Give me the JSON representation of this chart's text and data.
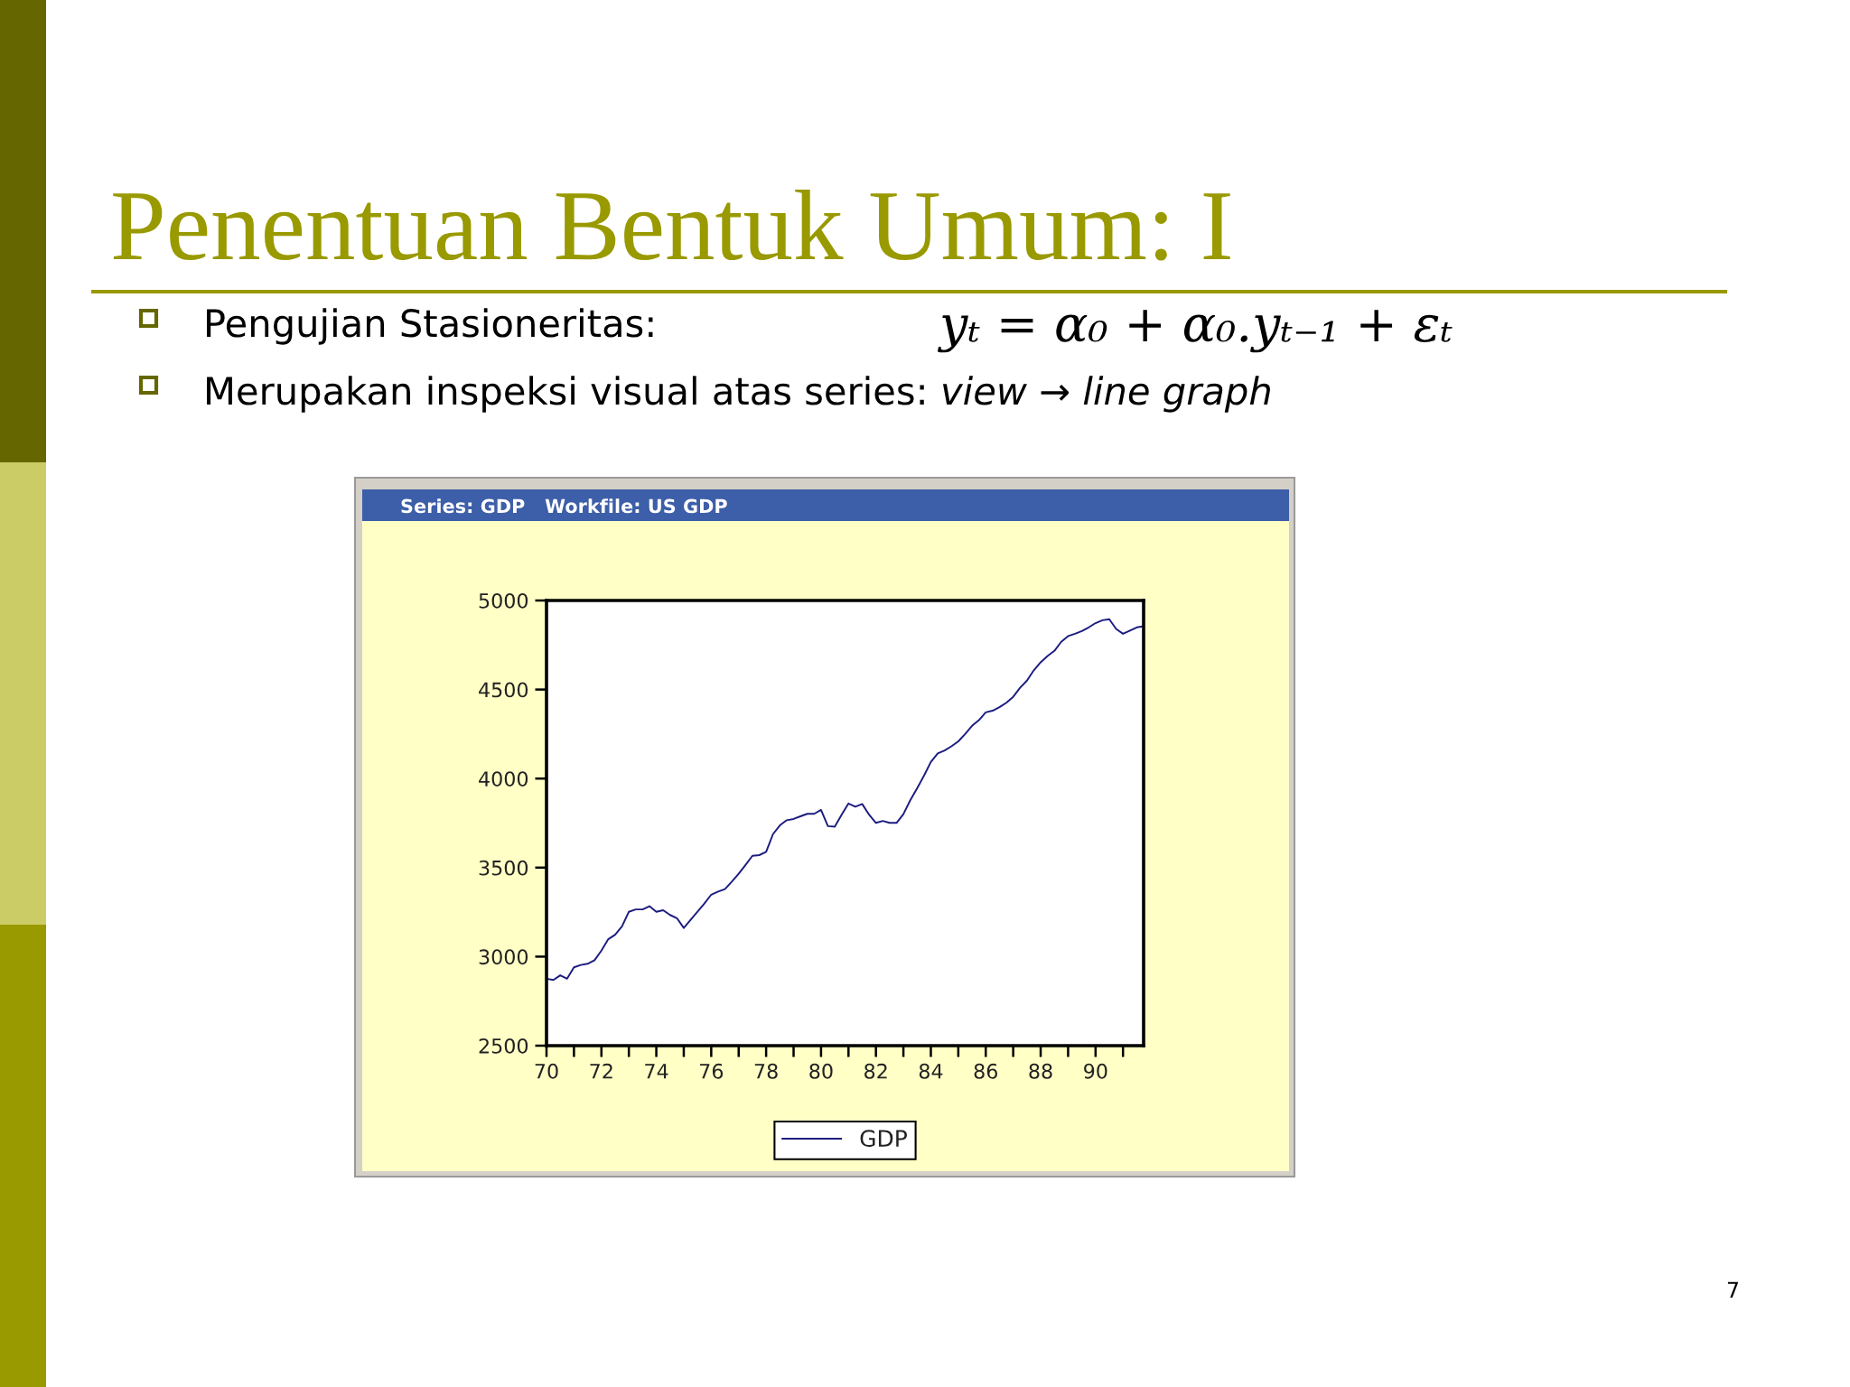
{
  "chart_data": {
    "type": "line",
    "title": "Penentuan Bentuk Umum: I",
    "subtitle": "Series: GDP   Workfile: US GDP",
    "annotations": [
      "Pengujian Stasioneritas:",
      "yₜ = α₀ + α₀.yₜ₋₁ + εₜ",
      "Merupakan inspeksi visual atas series:",
      "view → line graph",
      "7"
    ],
    "x": [
      70,
      70.25,
      70.5,
      70.75,
      71,
      71.25,
      71.5,
      71.75,
      72,
      72.25,
      72.5,
      72.75,
      73,
      73.25,
      73.5,
      73.75,
      74,
      74.25,
      74.5,
      74.75,
      75,
      75.25,
      75.5,
      75.75,
      76,
      76.25,
      76.5,
      76.75,
      77,
      77.25,
      77.5,
      77.75,
      78,
      78.25,
      78.5,
      78.75,
      79,
      79.25,
      79.5,
      79.75,
      80,
      80.25,
      80.5,
      80.75,
      81,
      81.25,
      81.5,
      81.75,
      82,
      82.25,
      82.5,
      82.75,
      83,
      83.25,
      83.5,
      83.75,
      84,
      84.25,
      84.5,
      84.75,
      85,
      85.25,
      85.5,
      85.75,
      86,
      86.25,
      86.5,
      86.75,
      87,
      87.25,
      87.5,
      87.75,
      88,
      88.25,
      88.5,
      88.75,
      89,
      89.25,
      89.5,
      89.75,
      90,
      90.25,
      90.5,
      90.75,
      91,
      91.25,
      91.5,
      91.75
    ],
    "series": [
      {
        "name": "GDP",
        "color": "#1c1c80",
        "values": [
          2876,
          2869,
          2895,
          2876,
          2940,
          2953,
          2960,
          2980,
          3034,
          3098,
          3123,
          3170,
          3252,
          3265,
          3265,
          3283,
          3252,
          3261,
          3234,
          3216,
          3161,
          3207,
          3252,
          3298,
          3348,
          3365,
          3379,
          3421,
          3465,
          3515,
          3566,
          3570,
          3588,
          3688,
          3737,
          3766,
          3773,
          3788,
          3802,
          3802,
          3824,
          3733,
          3730,
          3797,
          3860,
          3842,
          3857,
          3797,
          3751,
          3762,
          3751,
          3751,
          3800,
          3878,
          3945,
          4016,
          4093,
          4141,
          4158,
          4181,
          4209,
          4250,
          4296,
          4328,
          4372,
          4381,
          4401,
          4426,
          4459,
          4510,
          4550,
          4608,
          4653,
          4688,
          4717,
          4768,
          4800,
          4813,
          4828,
          4849,
          4873,
          4889,
          4895,
          4840,
          4813,
          4831,
          4849,
          4855
        ]
      }
    ],
    "xlim": [
      70,
      91.75
    ],
    "xticks": [
      70,
      {
        "value": 71,
        "label": null
      },
      72,
      {
        "value": 73,
        "label": null
      },
      74,
      {
        "value": 75,
        "label": null
      },
      76,
      {
        "value": 77,
        "label": null
      },
      78,
      {
        "value": 79,
        "label": null
      },
      80,
      {
        "value": 81,
        "label": null
      },
      82,
      {
        "value": 83,
        "label": null
      },
      84,
      {
        "value": 85,
        "label": null
      },
      86,
      {
        "value": 87,
        "label": null
      },
      88,
      {
        "value": 89,
        "label": null
      },
      90,
      {
        "value": 91,
        "label": null
      }
    ],
    "ylim": [
      2500,
      5000
    ],
    "yticks": [
      2500,
      3000,
      3500,
      4000,
      4500,
      5000
    ],
    "legend": "bottom"
  }
}
